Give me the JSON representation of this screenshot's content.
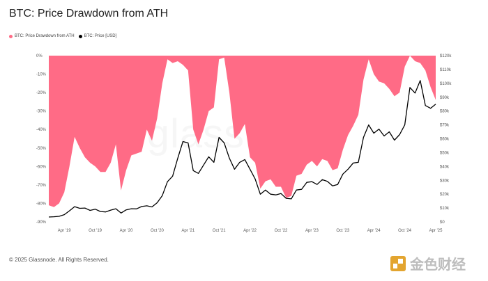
{
  "title": "BTC: Price Drawdown from ATH",
  "legend": {
    "drawdown_label": "BTC: Price Drawdown from ATH",
    "price_label": "BTC: Price [USD]"
  },
  "colors": {
    "drawdown": "#ff6b86",
    "price": "#000000",
    "accent_logo": "#e3a530"
  },
  "watermark": "glassnode",
  "copyright": "© 2025 Glassnode. All Rights Reserved.",
  "corner_logo_text": "金色财经",
  "chart_data": {
    "type": "area",
    "title": "BTC: Price Drawdown from ATH",
    "x_start": "2019-01",
    "x_end": "2025-04",
    "x_tick_labels": [
      "Apr '19",
      "Oct '19",
      "Apr '20",
      "Oct '20",
      "Apr '21",
      "Oct '21",
      "Apr '22",
      "Oct '22",
      "Apr '23",
      "Oct '23",
      "Apr '24",
      "Oct '24",
      "Apr '25"
    ],
    "left_axis": {
      "ticks": [
        "0%",
        "-10%",
        "-20%",
        "-30%",
        "-40%",
        "-50%",
        "-60%",
        "-70%",
        "-80%",
        "-90%"
      ],
      "ylim": [
        -90,
        0
      ]
    },
    "right_axis": {
      "ticks": [
        "$0",
        "$10k",
        "$20k",
        "$30k",
        "$40k",
        "$50k",
        "$60k",
        "$70k",
        "$80k",
        "$90k",
        "$100k",
        "$110k",
        "$120k"
      ],
      "ylim": [
        0,
        120000
      ]
    },
    "series": [
      {
        "name": "BTC: Price Drawdown from ATH",
        "axis": "left",
        "x": [
          "2019-01",
          "2019-02",
          "2019-03",
          "2019-04",
          "2019-05",
          "2019-06",
          "2019-07",
          "2019-08",
          "2019-09",
          "2019-10",
          "2019-11",
          "2019-12",
          "2020-01",
          "2020-02",
          "2020-03",
          "2020-04",
          "2020-05",
          "2020-06",
          "2020-07",
          "2020-08",
          "2020-09",
          "2020-10",
          "2020-11",
          "2020-12",
          "2021-01",
          "2021-02",
          "2021-03",
          "2021-04",
          "2021-05",
          "2021-06",
          "2021-07",
          "2021-08",
          "2021-09",
          "2021-10",
          "2021-11",
          "2021-12",
          "2022-01",
          "2022-02",
          "2022-03",
          "2022-04",
          "2022-05",
          "2022-06",
          "2022-07",
          "2022-08",
          "2022-09",
          "2022-10",
          "2022-11",
          "2022-12",
          "2023-01",
          "2023-02",
          "2023-03",
          "2023-04",
          "2023-05",
          "2023-06",
          "2023-07",
          "2023-08",
          "2023-09",
          "2023-10",
          "2023-11",
          "2023-12",
          "2024-01",
          "2024-02",
          "2024-03",
          "2024-04",
          "2024-05",
          "2024-06",
          "2024-07",
          "2024-08",
          "2024-09",
          "2024-10",
          "2024-11",
          "2024-12",
          "2025-01",
          "2025-02",
          "2025-03",
          "2025-04"
        ],
        "values": [
          -81,
          -82,
          -80,
          -74,
          -60,
          -44,
          -50,
          -55,
          -58,
          -60,
          -63,
          -63,
          -58,
          -48,
          -73,
          -62,
          -54,
          -53,
          -52,
          -40,
          -46,
          -34,
          -15,
          -2,
          -4,
          -3,
          -5,
          -8,
          -40,
          -48,
          -40,
          -30,
          -28,
          -2,
          -1,
          -20,
          -45,
          -42,
          -37,
          -55,
          -58,
          -72,
          -68,
          -67,
          -71,
          -71,
          -77,
          -76,
          -65,
          -64,
          -59,
          -57,
          -60,
          -56,
          -57,
          -62,
          -61,
          -51,
          -43,
          -38,
          -32,
          -13,
          -2,
          -10,
          -14,
          -15,
          -18,
          -22,
          -20,
          -6,
          0,
          -3,
          -4,
          -8,
          -17,
          -24
        ]
      },
      {
        "name": "BTC: Price [USD]",
        "axis": "right",
        "x": [
          "2019-01",
          "2019-02",
          "2019-03",
          "2019-04",
          "2019-05",
          "2019-06",
          "2019-07",
          "2019-08",
          "2019-09",
          "2019-10",
          "2019-11",
          "2019-12",
          "2020-01",
          "2020-02",
          "2020-03",
          "2020-04",
          "2020-05",
          "2020-06",
          "2020-07",
          "2020-08",
          "2020-09",
          "2020-10",
          "2020-11",
          "2020-12",
          "2021-01",
          "2021-02",
          "2021-03",
          "2021-04",
          "2021-05",
          "2021-06",
          "2021-07",
          "2021-08",
          "2021-09",
          "2021-10",
          "2021-11",
          "2021-12",
          "2022-01",
          "2022-02",
          "2022-03",
          "2022-04",
          "2022-05",
          "2022-06",
          "2022-07",
          "2022-08",
          "2022-09",
          "2022-10",
          "2022-11",
          "2022-12",
          "2023-01",
          "2023-02",
          "2023-03",
          "2023-04",
          "2023-05",
          "2023-06",
          "2023-07",
          "2023-08",
          "2023-09",
          "2023-10",
          "2023-11",
          "2023-12",
          "2024-01",
          "2024-02",
          "2024-03",
          "2024-04",
          "2024-05",
          "2024-06",
          "2024-07",
          "2024-08",
          "2024-09",
          "2024-10",
          "2024-11",
          "2024-12",
          "2025-01",
          "2025-02",
          "2025-03",
          "2025-04"
        ],
        "values": [
          3500,
          3700,
          4000,
          5200,
          8000,
          11000,
          9800,
          10000,
          8300,
          9200,
          7500,
          7200,
          8500,
          9500,
          6400,
          8700,
          9500,
          9400,
          11100,
          11600,
          10800,
          13800,
          19000,
          29000,
          33000,
          46000,
          58000,
          57000,
          37000,
          35000,
          41000,
          47000,
          43000,
          61000,
          57000,
          46000,
          38000,
          43000,
          45000,
          38000,
          31000,
          20000,
          23000,
          20000,
          19500,
          20500,
          17000,
          16600,
          23000,
          23500,
          28500,
          29000,
          27000,
          30500,
          29200,
          26000,
          27000,
          34500,
          38000,
          42500,
          43000,
          61000,
          70000,
          64000,
          67000,
          62000,
          65000,
          59000,
          63000,
          70000,
          97000,
          93000,
          102000,
          84000,
          82000,
          85000
        ]
      }
    ],
    "grid": false,
    "legend_position": "top-left"
  }
}
